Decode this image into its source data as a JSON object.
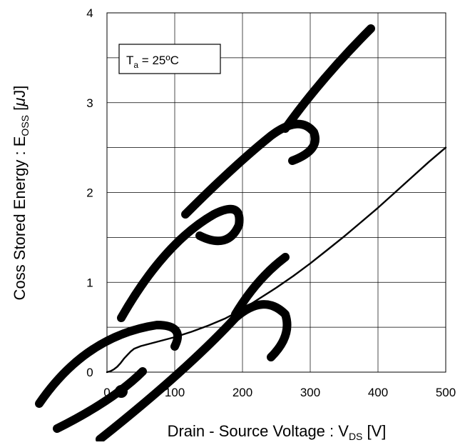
{
  "chart_data": {
    "type": "line",
    "title": "",
    "xlabel": {
      "main": "Drain - Source Voltage : V",
      "sub": "DS",
      "unit": " [V]"
    },
    "ylabel": {
      "main": "Coss Stored Energy : E",
      "sub": "OSS",
      "unit": " [",
      "unit_mu": "μ",
      "unit_end": "J]"
    },
    "xlim": [
      0,
      500
    ],
    "ylim": [
      0,
      4
    ],
    "xticks": [
      0,
      100,
      200,
      300,
      400,
      500
    ],
    "yticks": [
      0,
      1,
      2,
      3,
      4
    ],
    "x_grid_step": 100,
    "y_grid_step": 0.5,
    "grid": true,
    "annotation": {
      "main": "T",
      "sub": "a",
      "rest": " = 25ºC"
    },
    "series": [
      {
        "x": [
          0,
          5,
          10,
          15,
          20,
          25,
          30,
          35,
          40,
          50,
          60,
          80,
          100,
          125,
          150,
          175,
          200,
          225,
          250,
          275,
          300,
          325,
          350,
          375,
          400,
          425,
          450,
          475,
          500
        ],
        "y": [
          0.0,
          0.01,
          0.03,
          0.06,
          0.1,
          0.15,
          0.19,
          0.23,
          0.26,
          0.29,
          0.31,
          0.35,
          0.39,
          0.45,
          0.52,
          0.6,
          0.7,
          0.82,
          0.94,
          1.07,
          1.21,
          1.36,
          1.51,
          1.67,
          1.83,
          2.0,
          2.17,
          2.34,
          2.5
        ]
      }
    ]
  }
}
